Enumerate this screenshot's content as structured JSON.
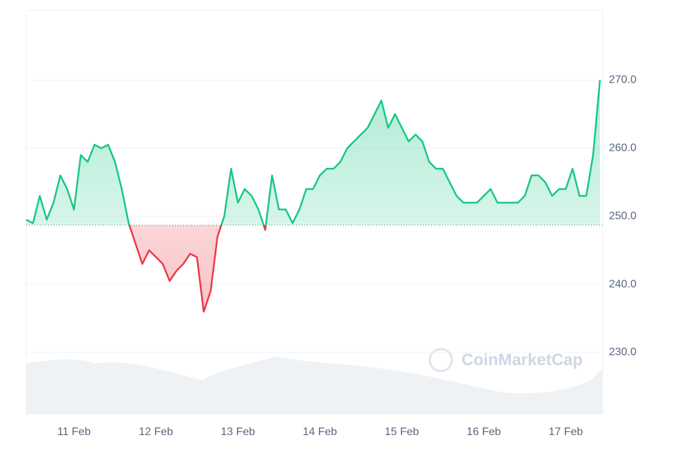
{
  "chart_data": {
    "type": "line",
    "watermark": "CoinMarketCap",
    "categories": [
      null,
      null,
      null,
      null,
      null,
      null,
      null,
      "11 Feb",
      null,
      null,
      null,
      null,
      null,
      null,
      null,
      null,
      null,
      null,
      null,
      "12 Feb",
      null,
      null,
      null,
      null,
      null,
      null,
      null,
      null,
      null,
      null,
      null,
      "13 Feb",
      null,
      null,
      null,
      null,
      null,
      null,
      null,
      null,
      null,
      null,
      null,
      "14 Feb",
      null,
      null,
      null,
      null,
      null,
      null,
      null,
      null,
      null,
      null,
      null,
      "15 Feb",
      null,
      null,
      null,
      null,
      null,
      null,
      null,
      null,
      null,
      null,
      null,
      "16 Feb",
      null,
      null,
      null,
      null,
      null,
      null,
      null,
      null,
      null,
      null,
      null,
      "17 Feb",
      null,
      null,
      null,
      null,
      null
    ],
    "values": [
      249.5,
      249,
      253,
      249.5,
      252,
      256,
      254,
      251,
      259,
      258,
      260.5,
      260,
      260.5,
      258,
      254,
      249,
      246,
      243,
      245,
      244,
      243,
      240.5,
      242,
      243,
      244.5,
      244,
      236,
      239,
      247,
      250,
      257,
      252,
      254,
      253,
      251,
      248,
      256,
      251,
      251,
      249,
      251,
      254,
      254,
      256,
      257,
      257,
      258,
      260,
      261,
      262,
      263,
      265,
      267,
      263,
      265,
      263,
      261,
      262,
      261,
      258,
      257,
      257,
      255,
      253,
      252,
      252,
      252,
      253,
      254,
      252,
      252,
      252,
      252,
      253,
      256,
      256,
      255,
      253,
      254,
      254,
      257,
      253,
      253,
      259,
      270
    ],
    "reference_line": 248.7,
    "up_color": "#16c784",
    "down_color": "#ea3943",
    "ylim": [
      220.9,
      280.25
    ],
    "yticks": [
      {
        "value": 230,
        "label": "230.0"
      },
      {
        "value": 240,
        "label": "240.0"
      },
      {
        "value": 250,
        "label": "250.0"
      },
      {
        "value": 260,
        "label": "260.0"
      },
      {
        "value": 270,
        "label": "270.0"
      }
    ],
    "grid": true
  }
}
